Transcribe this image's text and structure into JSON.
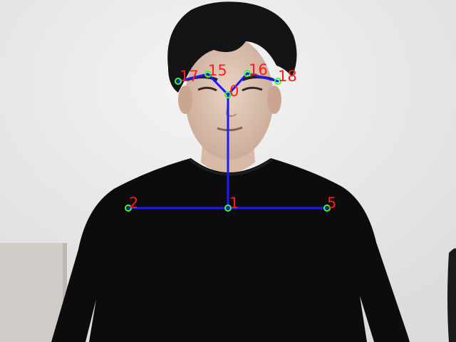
{
  "image": {
    "subject": "person-head-and-shoulders",
    "background_color": "#e9e9ea",
    "shirt_color": "#0c0c0c"
  },
  "pose_overlay": {
    "colors": {
      "limb": "#1a1aff",
      "keypoint": "#33ff33",
      "label": "#ff1a1a"
    },
    "keypoints": [
      {
        "id": "0",
        "label": "0"
      },
      {
        "id": "1",
        "label": "1"
      },
      {
        "id": "2",
        "label": "2"
      },
      {
        "id": "5",
        "label": "5"
      },
      {
        "id": "15",
        "label": "15"
      },
      {
        "id": "16",
        "label": "16"
      },
      {
        "id": "17",
        "label": "17"
      },
      {
        "id": "18",
        "label": "18"
      }
    ],
    "edges": [
      [
        "0",
        "1"
      ],
      [
        "1",
        "2"
      ],
      [
        "1",
        "5"
      ],
      [
        "0",
        "15"
      ],
      [
        "15",
        "17"
      ],
      [
        "0",
        "16"
      ],
      [
        "16",
        "18"
      ]
    ]
  }
}
